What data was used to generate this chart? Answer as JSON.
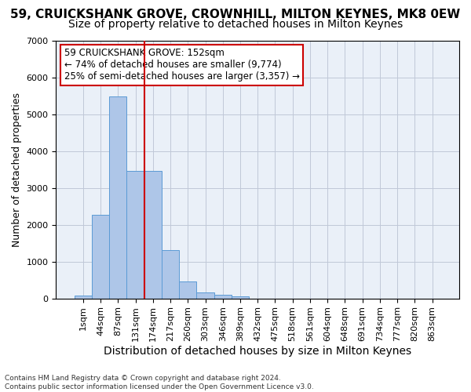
{
  "title": "59, CRUICKSHANK GROVE, CROWNHILL, MILTON KEYNES, MK8 0EW",
  "subtitle": "Size of property relative to detached houses in Milton Keynes",
  "xlabel": "Distribution of detached houses by size in Milton Keynes",
  "ylabel": "Number of detached properties",
  "bar_values": [
    75,
    2270,
    5480,
    3450,
    3450,
    1310,
    470,
    155,
    90,
    55,
    0,
    0,
    0,
    0,
    0,
    0,
    0,
    0,
    0,
    0,
    0
  ],
  "bar_labels": [
    "1sqm",
    "44sqm",
    "87sqm",
    "131sqm",
    "174sqm",
    "217sqm",
    "260sqm",
    "303sqm",
    "346sqm",
    "389sqm",
    "432sqm",
    "475sqm",
    "518sqm",
    "561sqm",
    "604sqm",
    "648sqm",
    "691sqm",
    "734sqm",
    "777sqm",
    "820sqm",
    "863sqm"
  ],
  "bar_color": "#aec6e8",
  "bar_edge_color": "#5b9bd5",
  "vline_x": 3.5,
  "vline_color": "#cc0000",
  "annotation_text": "59 CRUICKSHANK GROVE: 152sqm\n← 74% of detached houses are smaller (9,774)\n25% of semi-detached houses are larger (3,357) →",
  "annotation_box_color": "#ffffff",
  "annotation_box_edge": "#cc0000",
  "ylim": [
    0,
    7000
  ],
  "yticks": [
    0,
    1000,
    2000,
    3000,
    4000,
    5000,
    6000,
    7000
  ],
  "background_color": "#eaf0f8",
  "footer_text": "Contains HM Land Registry data © Crown copyright and database right 2024.\nContains public sector information licensed under the Open Government Licence v3.0.",
  "title_fontsize": 11,
  "subtitle_fontsize": 10,
  "xlabel_fontsize": 10,
  "ylabel_fontsize": 9,
  "tick_fontsize": 8
}
